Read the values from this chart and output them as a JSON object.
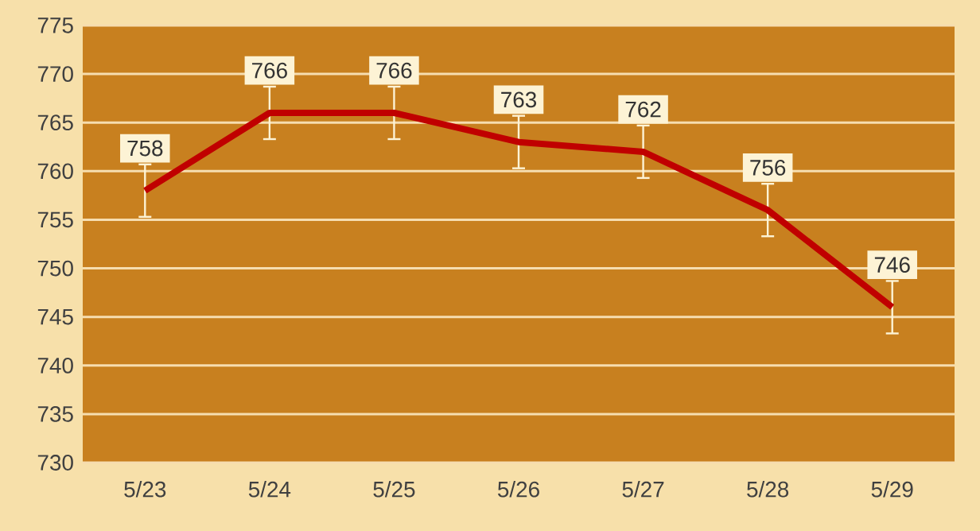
{
  "chart_data": {
    "type": "line",
    "categories": [
      "5/23",
      "5/24",
      "5/25",
      "5/26",
      "5/27",
      "5/28",
      "5/29"
    ],
    "values": [
      758,
      766,
      766,
      763,
      762,
      756,
      746
    ],
    "errors": [
      2.7,
      2.7,
      2.7,
      2.7,
      2.7,
      2.7,
      2.7
    ],
    "color": "#c00000",
    "data_labels": true,
    "grid": "y",
    "marker": "none",
    "line_style": "solid",
    "ylim": [
      730,
      775
    ],
    "yticks": [
      730,
      735,
      740,
      745,
      750,
      755,
      760,
      765,
      770,
      775
    ]
  }
}
